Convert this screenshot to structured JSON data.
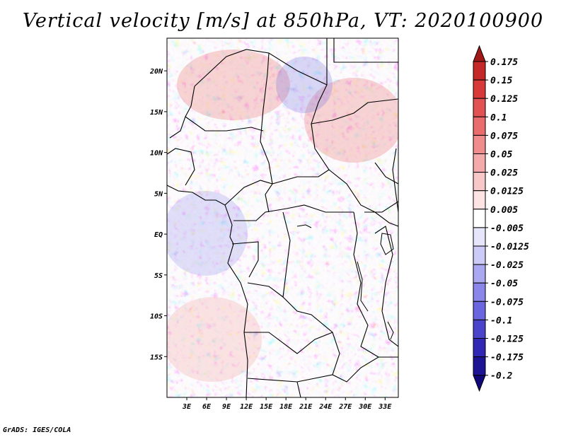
{
  "title": "Vertical velocity [m/s] at 850hPa, VT: 2020100900",
  "credit": "GrADS: IGES/COLA",
  "map": {
    "lon_range": [
      0,
      35
    ],
    "lat_range": [
      -20,
      24
    ],
    "lat_ticks": [
      {
        "value": 20,
        "label": "20N"
      },
      {
        "value": 15,
        "label": "15N"
      },
      {
        "value": 10,
        "label": "10N"
      },
      {
        "value": 5,
        "label": "5N"
      },
      {
        "value": 0,
        "label": "EQ"
      },
      {
        "value": -5,
        "label": "5S"
      },
      {
        "value": -10,
        "label": "10S"
      },
      {
        "value": -15,
        "label": "15S"
      }
    ],
    "lon_ticks": [
      {
        "value": 3,
        "label": "3E"
      },
      {
        "value": 6,
        "label": "6E"
      },
      {
        "value": 9,
        "label": "9E"
      },
      {
        "value": 12,
        "label": "12E"
      },
      {
        "value": 15,
        "label": "15E"
      },
      {
        "value": 18,
        "label": "18E"
      },
      {
        "value": 21,
        "label": "21E"
      },
      {
        "value": 24,
        "label": "24E"
      },
      {
        "value": 27,
        "label": "27E"
      },
      {
        "value": 30,
        "label": "30E"
      },
      {
        "value": 33,
        "label": "33E"
      }
    ]
  },
  "colorbar": {
    "labels": [
      "0.175",
      "0.15",
      "0.125",
      "0.1",
      "0.075",
      "0.05",
      "0.025",
      "0.0125",
      "0.005",
      "-0.005",
      "-0.0125",
      "-0.025",
      "-0.05",
      "-0.075",
      "-0.1",
      "-0.125",
      "-0.175",
      "-0.2"
    ],
    "colors": [
      "#a01818",
      "#c42828",
      "#d83a3a",
      "#e25252",
      "#ea6c6c",
      "#f08c8c",
      "#f4aaaa",
      "#f8c8c8",
      "#fce4e4",
      "#ffffff",
      "#e6e6fa",
      "#cccaf6",
      "#aaa8f0",
      "#8a86ea",
      "#6a66e0",
      "#4a44cc",
      "#3028b4",
      "#1c1494",
      "#10087a"
    ]
  }
}
